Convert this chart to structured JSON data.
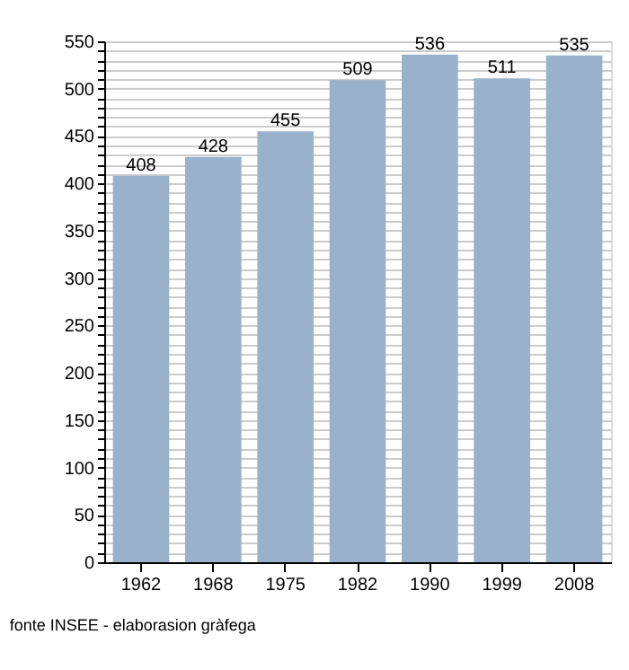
{
  "chart_data": {
    "type": "bar",
    "categories": [
      "1962",
      "1968",
      "1975",
      "1982",
      "1990",
      "1999",
      "2008"
    ],
    "values": [
      408,
      428,
      455,
      509,
      536,
      511,
      535
    ],
    "color": "#9ab1cb",
    "ylim": [
      0,
      550
    ],
    "yticks": [
      0,
      {
        "value": 10,
        "label": null
      },
      {
        "value": 20,
        "label": null
      },
      {
        "value": 30,
        "label": null
      },
      {
        "value": 40,
        "label": null
      },
      50,
      {
        "value": 60,
        "label": null
      },
      {
        "value": 70,
        "label": null
      },
      {
        "value": 80,
        "label": null
      },
      {
        "value": 90,
        "label": null
      },
      100,
      {
        "value": 110,
        "label": null
      },
      {
        "value": 120,
        "label": null
      },
      {
        "value": 130,
        "label": null
      },
      {
        "value": 140,
        "label": null
      },
      150,
      {
        "value": 160,
        "label": null
      },
      {
        "value": 170,
        "label": null
      },
      {
        "value": 180,
        "label": null
      },
      {
        "value": 190,
        "label": null
      },
      200,
      {
        "value": 210,
        "label": null
      },
      {
        "value": 220,
        "label": null
      },
      {
        "value": 230,
        "label": null
      },
      {
        "value": 240,
        "label": null
      },
      250,
      {
        "value": 260,
        "label": null
      },
      {
        "value": 270,
        "label": null
      },
      {
        "value": 280,
        "label": null
      },
      {
        "value": 290,
        "label": null
      },
      300,
      {
        "value": 310,
        "label": null
      },
      {
        "value": 320,
        "label": null
      },
      {
        "value": 330,
        "label": null
      },
      {
        "value": 340,
        "label": null
      },
      350,
      {
        "value": 360,
        "label": null
      },
      {
        "value": 370,
        "label": null
      },
      {
        "value": 380,
        "label": null
      },
      {
        "value": 390,
        "label": null
      },
      400,
      {
        "value": 410,
        "label": null
      },
      {
        "value": 420,
        "label": null
      },
      {
        "value": 430,
        "label": null
      },
      {
        "value": 440,
        "label": null
      },
      450,
      {
        "value": 460,
        "label": null
      },
      {
        "value": 470,
        "label": null
      },
      {
        "value": 480,
        "label": null
      },
      {
        "value": 490,
        "label": null
      },
      500,
      {
        "value": 510,
        "label": null
      },
      {
        "value": 520,
        "label": null
      },
      {
        "value": 530,
        "label": null
      },
      {
        "value": 540,
        "label": null
      },
      550
    ],
    "grid": "y",
    "data_labels": true,
    "annotations": [
      "fonte INSEE - elaborasion gràfega"
    ]
  }
}
